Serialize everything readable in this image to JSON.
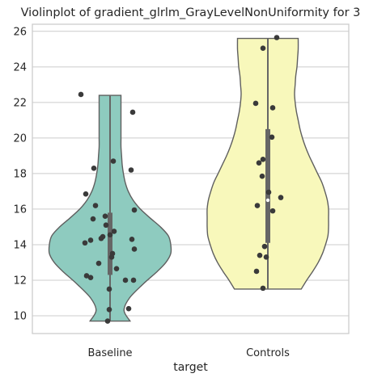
{
  "chart_data": {
    "type": "violin",
    "title": "Violinplot of gradient_glrlm_GrayLevelNonUniformity for 3",
    "xlabel": "target",
    "ylabel": "",
    "ylim": [
      9,
      26.4
    ],
    "yticks": [
      10,
      12,
      14,
      16,
      18,
      20,
      22,
      24,
      26
    ],
    "categories": [
      "Baseline",
      "Controls"
    ],
    "grid": true,
    "series": [
      {
        "category": "Baseline",
        "color": "#8ecbbf",
        "range": [
          9.7,
          22.4
        ],
        "quartiles": [
          12.3,
          14.5,
          15.8
        ],
        "density_profile": [
          [
            9.7,
            0.33
          ],
          [
            10.3,
            0.23
          ],
          [
            11.0,
            0.32
          ],
          [
            11.8,
            0.55
          ],
          [
            12.5,
            0.78
          ],
          [
            13.0,
            0.92
          ],
          [
            13.5,
            1.0
          ],
          [
            14.0,
            1.0
          ],
          [
            14.5,
            0.96
          ],
          [
            15.0,
            0.83
          ],
          [
            15.5,
            0.66
          ],
          [
            16.0,
            0.5
          ],
          [
            16.5,
            0.38
          ],
          [
            17.0,
            0.3
          ],
          [
            17.5,
            0.25
          ],
          [
            18.0,
            0.22
          ],
          [
            18.5,
            0.2
          ],
          [
            19.0,
            0.19
          ],
          [
            19.5,
            0.18
          ],
          [
            20.0,
            0.18
          ],
          [
            20.5,
            0.18
          ],
          [
            21.0,
            0.18
          ],
          [
            21.5,
            0.18
          ],
          [
            22.0,
            0.18
          ],
          [
            22.4,
            0.18
          ]
        ],
        "points": [
          [
            22.45,
            -0.36
          ],
          [
            21.45,
            0.28
          ],
          [
            18.7,
            0.04
          ],
          [
            18.3,
            -0.2
          ],
          [
            18.2,
            0.26
          ],
          [
            16.85,
            -0.3
          ],
          [
            16.2,
            -0.18
          ],
          [
            15.95,
            0.3
          ],
          [
            15.6,
            -0.06
          ],
          [
            15.45,
            -0.21
          ],
          [
            15.1,
            -0.05
          ],
          [
            14.75,
            0.05
          ],
          [
            14.55,
            0.0
          ],
          [
            14.45,
            -0.09
          ],
          [
            14.35,
            -0.11
          ],
          [
            14.3,
            0.27
          ],
          [
            14.25,
            -0.24
          ],
          [
            14.1,
            -0.31
          ],
          [
            13.75,
            0.3
          ],
          [
            13.5,
            0.03
          ],
          [
            13.3,
            0.02
          ],
          [
            12.95,
            -0.14
          ],
          [
            12.65,
            0.08
          ],
          [
            12.25,
            -0.29
          ],
          [
            12.15,
            -0.24
          ],
          [
            12.0,
            0.19
          ],
          [
            12.0,
            0.29
          ],
          [
            11.5,
            -0.01
          ],
          [
            10.4,
            0.23
          ],
          [
            10.35,
            -0.01
          ],
          [
            9.7,
            -0.03
          ]
        ]
      },
      {
        "category": "Controls",
        "color": "#f8f8bb",
        "range": [
          11.5,
          25.6
        ],
        "quartiles": [
          14.1,
          16.5,
          20.5
        ],
        "density_profile": [
          [
            11.5,
            0.55
          ],
          [
            12.0,
            0.64
          ],
          [
            12.5,
            0.74
          ],
          [
            13.0,
            0.83
          ],
          [
            13.5,
            0.9
          ],
          [
            14.0,
            0.95
          ],
          [
            14.5,
            0.99
          ],
          [
            15.0,
            1.0
          ],
          [
            15.5,
            1.0
          ],
          [
            16.0,
            1.0
          ],
          [
            16.5,
            0.98
          ],
          [
            17.0,
            0.94
          ],
          [
            17.5,
            0.89
          ],
          [
            18.0,
            0.82
          ],
          [
            18.5,
            0.75
          ],
          [
            19.0,
            0.68
          ],
          [
            19.5,
            0.62
          ],
          [
            20.0,
            0.57
          ],
          [
            20.5,
            0.53
          ],
          [
            21.0,
            0.5
          ],
          [
            21.5,
            0.47
          ],
          [
            22.0,
            0.45
          ],
          [
            22.5,
            0.44
          ],
          [
            23.0,
            0.45
          ],
          [
            23.5,
            0.46
          ],
          [
            24.0,
            0.48
          ],
          [
            24.5,
            0.49
          ],
          [
            25.0,
            0.5
          ],
          [
            25.6,
            0.5
          ]
        ],
        "points": [
          [
            25.65,
            0.11
          ],
          [
            25.05,
            -0.06
          ],
          [
            21.95,
            -0.15
          ],
          [
            21.7,
            0.06
          ],
          [
            20.05,
            0.05
          ],
          [
            18.8,
            -0.06
          ],
          [
            18.6,
            -0.11
          ],
          [
            17.85,
            -0.07
          ],
          [
            16.95,
            0.01
          ],
          [
            16.65,
            0.16
          ],
          [
            16.2,
            -0.13
          ],
          [
            15.9,
            0.06
          ],
          [
            13.9,
            -0.04
          ],
          [
            13.4,
            -0.1
          ],
          [
            13.3,
            -0.02
          ],
          [
            12.5,
            -0.14
          ],
          [
            11.55,
            -0.06
          ]
        ]
      }
    ]
  }
}
